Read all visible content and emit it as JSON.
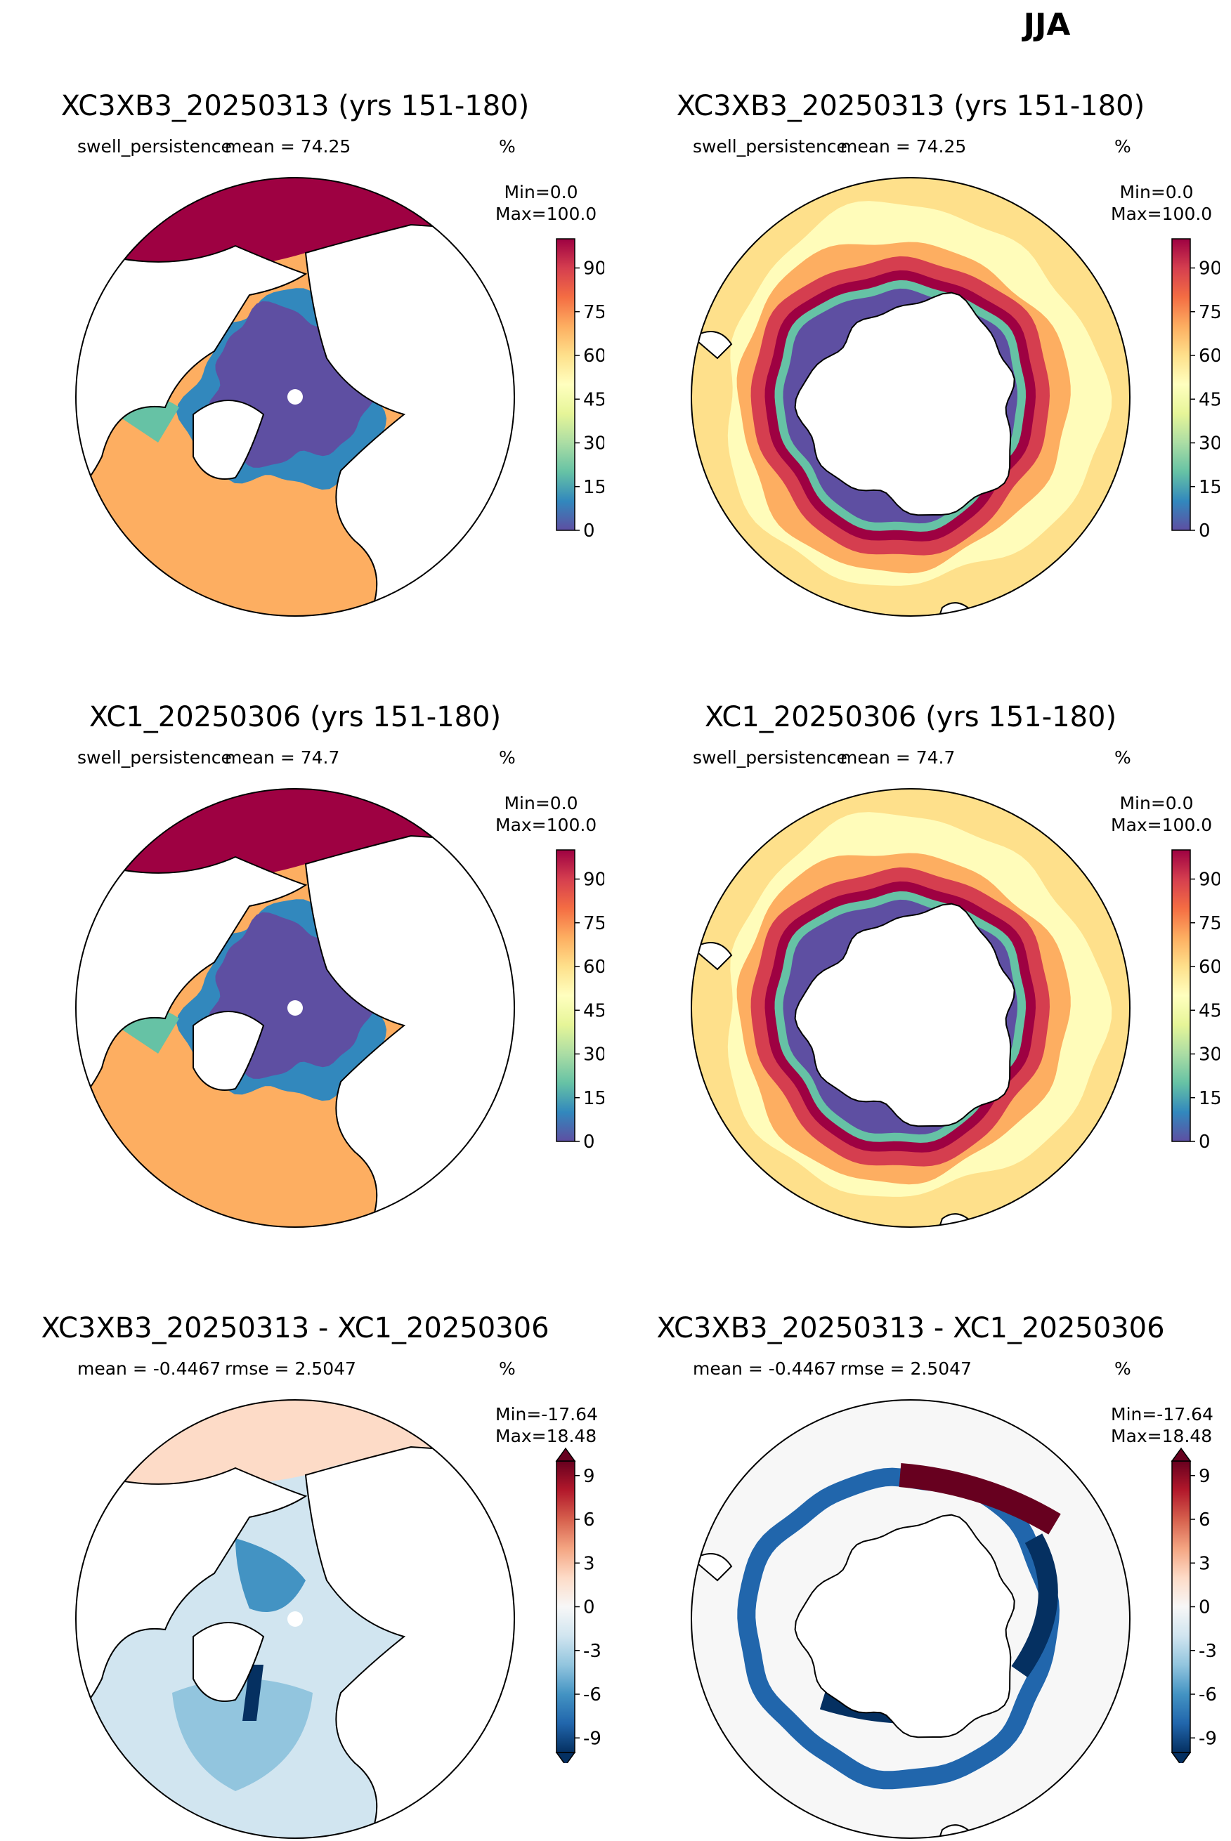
{
  "season": "JJA",
  "panels": [
    {
      "id": "p1",
      "title": "XC3XB3_20250313 (yrs 151-180)",
      "left_label": "swell_persistence",
      "center_label": "mean = 74.25",
      "units": "%",
      "min": "Min=0.0",
      "max": "Max=100.0",
      "hemisphere": "north",
      "mode": "field"
    },
    {
      "id": "p2",
      "title": "XC3XB3_20250313 (yrs 151-180)",
      "left_label": "swell_persistence",
      "center_label": "mean = 74.25",
      "units": "%",
      "min": "Min=0.0",
      "max": "Max=100.0",
      "hemisphere": "south",
      "mode": "field"
    },
    {
      "id": "p3",
      "title": "XC1_20250306 (yrs 151-180)",
      "left_label": "swell_persistence",
      "center_label": "mean = 74.7",
      "units": "%",
      "min": "Min=0.0",
      "max": "Max=100.0",
      "hemisphere": "north",
      "mode": "field"
    },
    {
      "id": "p4",
      "title": "XC1_20250306 (yrs 151-180)",
      "left_label": "swell_persistence",
      "center_label": "mean = 74.7",
      "units": "%",
      "min": "Min=0.0",
      "max": "Max=100.0",
      "hemisphere": "south",
      "mode": "field"
    },
    {
      "id": "p5",
      "title": "XC3XB3_20250313 - XC1_20250306",
      "left_label": "mean = -0.4467",
      "center_label": "rmse = 2.5047",
      "units": "%",
      "min": "Min=-17.64",
      "max": "Max=18.48",
      "hemisphere": "north",
      "mode": "diff"
    },
    {
      "id": "p6",
      "title": "XC3XB3_20250313 - XC1_20250306",
      "left_label": "mean = -0.4467",
      "center_label": "rmse = 2.5047",
      "units": "%",
      "min": "Min=-17.64",
      "max": "Max=18.48",
      "hemisphere": "south",
      "mode": "diff"
    }
  ],
  "colorbars": {
    "field": {
      "ticks": [
        "0",
        "15",
        "30",
        "45",
        "60",
        "75",
        "90"
      ],
      "range": [
        0,
        100
      ],
      "colors": [
        "#5e4fa2",
        "#3288bd",
        "#66c2a5",
        "#abdda4",
        "#e6f598",
        "#ffffbf",
        "#fee08b",
        "#fdae61",
        "#f46d43",
        "#d53e4f",
        "#9e0142"
      ]
    },
    "diff": {
      "ticks": [
        "-9",
        "-6",
        "-3",
        "0",
        "3",
        "6",
        "9"
      ],
      "range": [
        -10,
        10
      ],
      "colors": [
        "#053061",
        "#2166ac",
        "#4393c3",
        "#92c5de",
        "#d1e5f0",
        "#f7f7f7",
        "#fddbc7",
        "#f4a582",
        "#d6604d",
        "#b2182b",
        "#67001f"
      ]
    }
  }
}
